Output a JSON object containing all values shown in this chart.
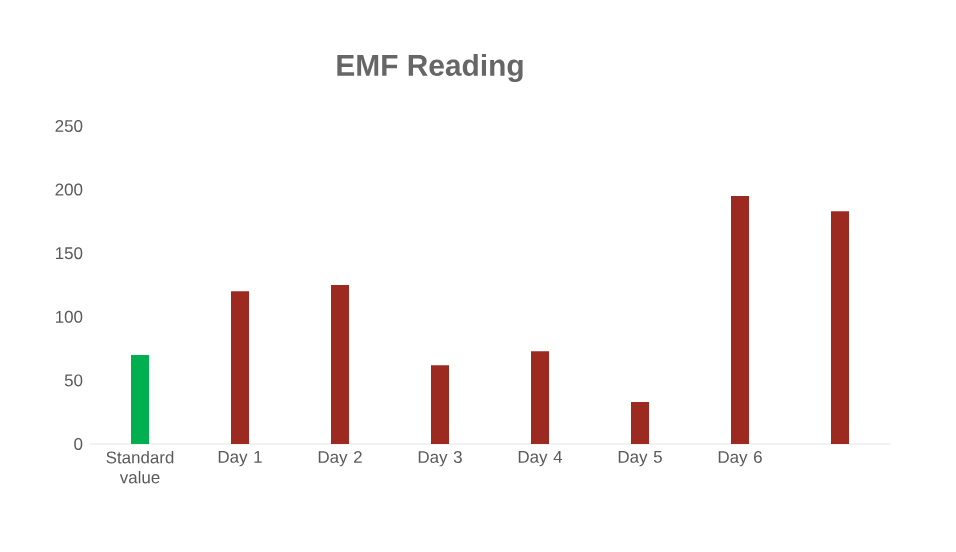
{
  "chart_data": {
    "type": "bar",
    "title": "EMF Reading",
    "categories": [
      "Standard value",
      "Day 1",
      "Day 2",
      "Day 3",
      "Day 4",
      "Day 5",
      "Day 6",
      null
    ],
    "values": [
      70,
      120,
      125,
      62,
      73,
      33,
      195,
      183
    ],
    "colors": [
      "#00b050",
      "#9c2a20",
      "#9c2a20",
      "#9c2a20",
      "#9c2a20",
      "#9c2a20",
      "#9c2a20",
      "#9c2a20"
    ],
    "ylim": [
      0,
      250
    ],
    "yticks": [
      0,
      50,
      100,
      150,
      200,
      250
    ]
  }
}
